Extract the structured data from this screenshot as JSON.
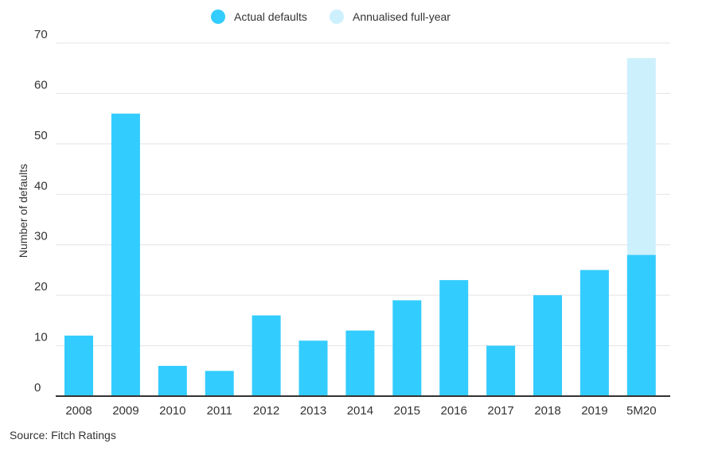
{
  "chart_data": {
    "type": "bar",
    "stacked": true,
    "categories": [
      "2008",
      "2009",
      "2010",
      "2011",
      "2012",
      "2013",
      "2014",
      "2015",
      "2016",
      "2017",
      "2018",
      "2019",
      "5M20"
    ],
    "series": [
      {
        "name": "Actual defaults",
        "color": "#33ccff",
        "values": [
          12,
          56,
          6,
          5,
          16,
          11,
          13,
          19,
          23,
          10,
          20,
          25,
          28
        ]
      },
      {
        "name": "Annualised full-year",
        "color": "#cdf0fd",
        "values": [
          0,
          0,
          0,
          0,
          0,
          0,
          0,
          0,
          0,
          0,
          0,
          0,
          39
        ]
      }
    ],
    "ylabel": "Number of defaults",
    "xlabel": "",
    "ylim": [
      0,
      70
    ],
    "yticks": [
      0,
      10,
      20,
      30,
      40,
      50,
      60,
      70
    ],
    "grid": true,
    "legend_position": "top-center"
  },
  "source": "Source: Fitch Ratings",
  "colors": {
    "grid": "#e3e3e3",
    "axis": "#333333"
  }
}
